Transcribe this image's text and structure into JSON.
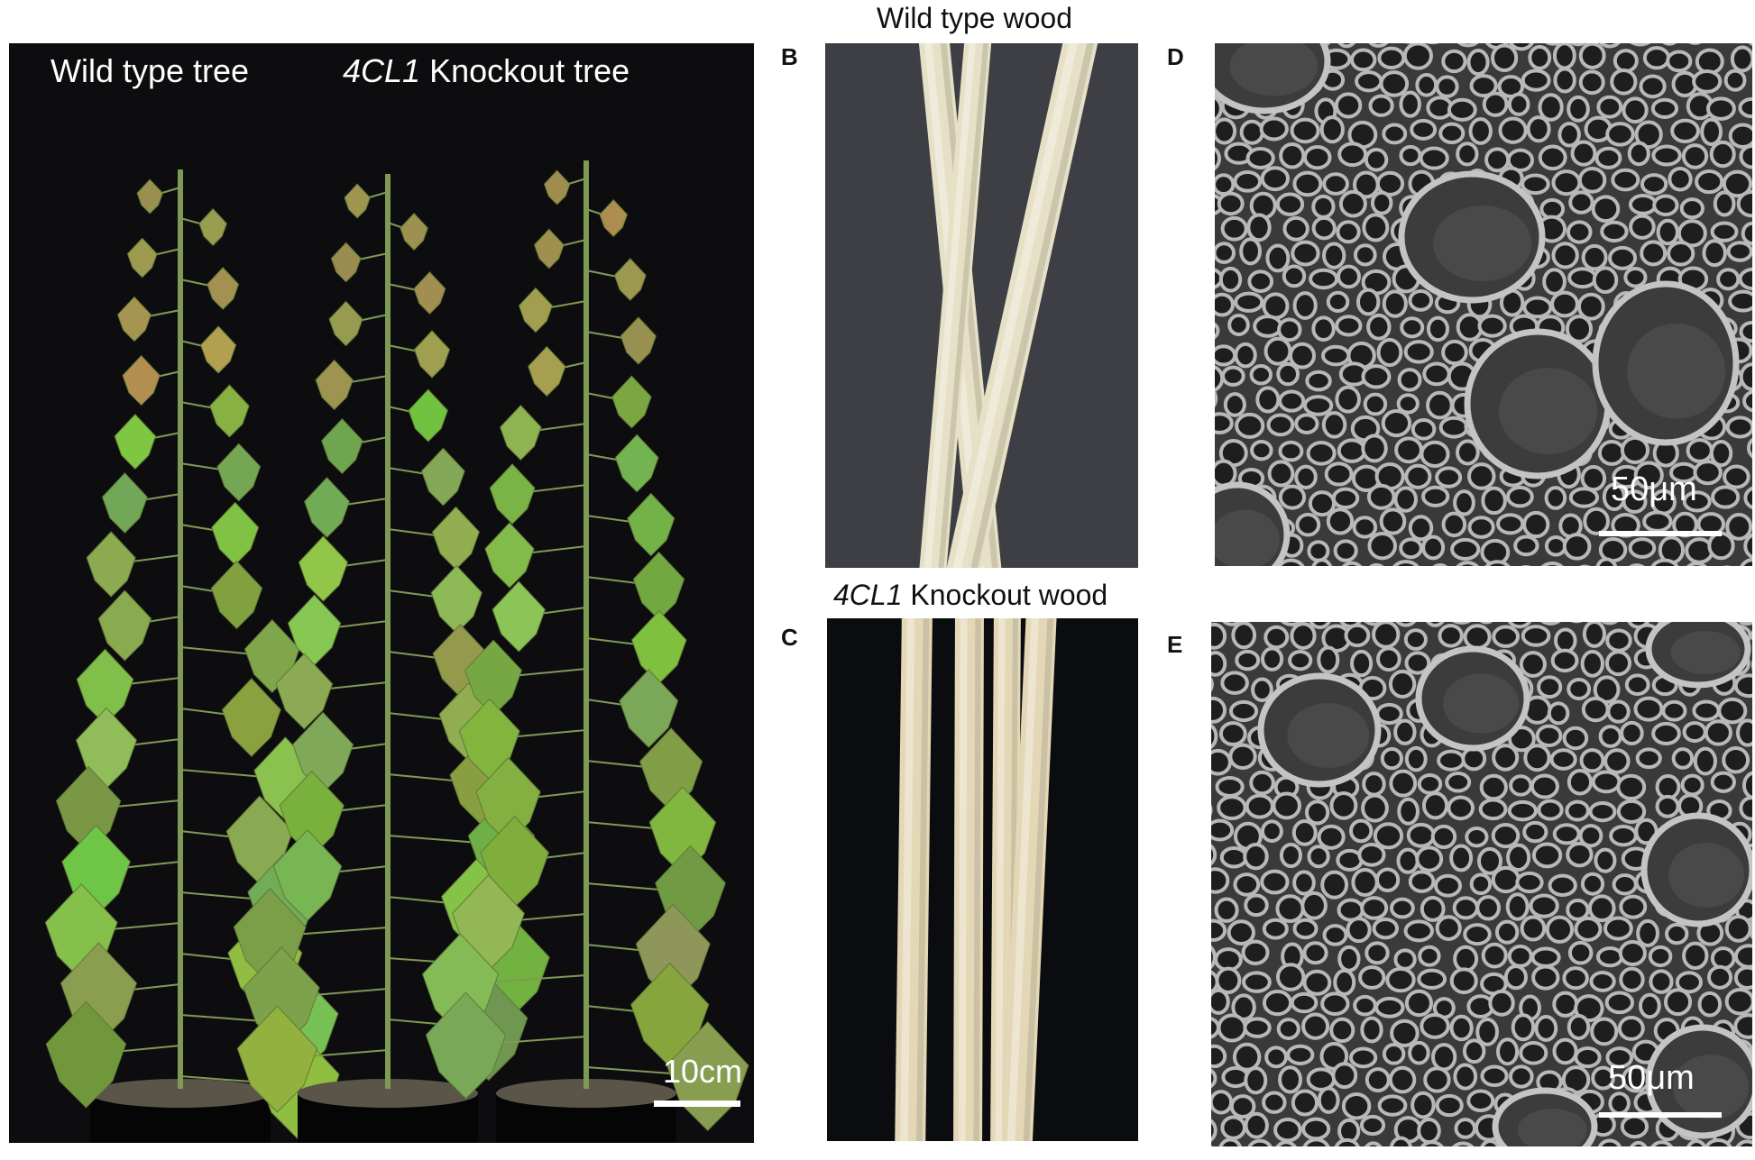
{
  "panel_a": {
    "label_wild": "Wild type tree",
    "label_ko_gene": "4CL1",
    "label_ko_rest": " Knockout tree",
    "scale_label": "10cm"
  },
  "panel_b": {
    "letter": "B",
    "title": "Wild type wood"
  },
  "panel_c": {
    "letter": "C",
    "title_gene": "4CL1",
    "title_rest": " Knockout wood"
  },
  "panel_d": {
    "letter": "D",
    "scale_label": "50μm"
  },
  "panel_e": {
    "letter": "E",
    "scale_label": "50μm"
  },
  "colors": {
    "photo_background": "#0d0d0f",
    "leaf_green": "#8fb34a",
    "wood": "#e8e2c8",
    "sem_background": "#3a3a3a",
    "sem_cell_wall": "#b4b4b4"
  }
}
